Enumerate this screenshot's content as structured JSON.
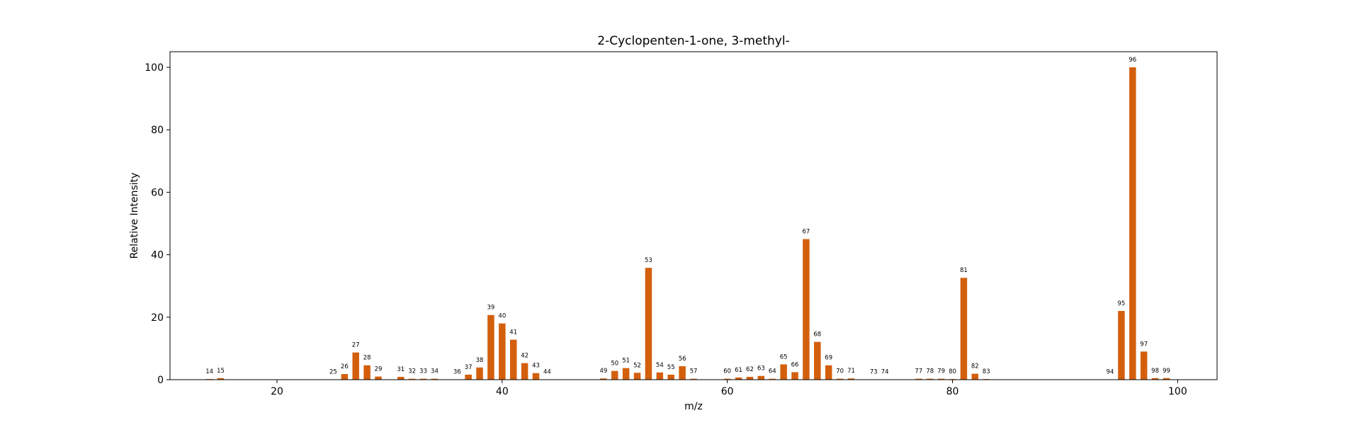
{
  "chart_data": {
    "type": "bar",
    "title": "2-Cyclopenten-1-one, 3-methyl-",
    "xlabel": "m/z",
    "ylabel": "Relative Intensity",
    "xlim": [
      10.5,
      103.5
    ],
    "ylim": [
      0,
      105
    ],
    "xticks": [
      20,
      40,
      60,
      80,
      100
    ],
    "yticks": [
      0,
      20,
      40,
      60,
      80,
      100
    ],
    "grid": false,
    "bar_color": "#d35f0d",
    "x": [
      14,
      15,
      25,
      26,
      27,
      28,
      29,
      31,
      32,
      33,
      34,
      36,
      37,
      38,
      39,
      40,
      41,
      42,
      43,
      44,
      49,
      50,
      51,
      52,
      53,
      54,
      55,
      56,
      57,
      60,
      61,
      62,
      63,
      64,
      65,
      66,
      67,
      68,
      69,
      70,
      71,
      73,
      74,
      77,
      78,
      79,
      80,
      81,
      82,
      83,
      94,
      95,
      96,
      97,
      98,
      99
    ],
    "values": [
      0.2,
      0.5,
      0.1,
      1.8,
      8.7,
      4.6,
      1.0,
      0.9,
      0.3,
      0.3,
      0.3,
      0.1,
      1.6,
      3.9,
      20.7,
      18.0,
      12.8,
      5.3,
      2.1,
      0.1,
      0.4,
      2.8,
      3.7,
      2.2,
      35.8,
      2.3,
      1.6,
      4.3,
      0.3,
      0.3,
      0.7,
      0.9,
      1.2,
      0.3,
      4.9,
      2.4,
      45.0,
      12.1,
      4.6,
      0.3,
      0.4,
      0.1,
      0.1,
      0.3,
      0.3,
      0.3,
      0.2,
      32.6,
      1.9,
      0.2,
      0.1,
      22.0,
      100.0,
      9.0,
      0.5,
      0.5
    ]
  }
}
